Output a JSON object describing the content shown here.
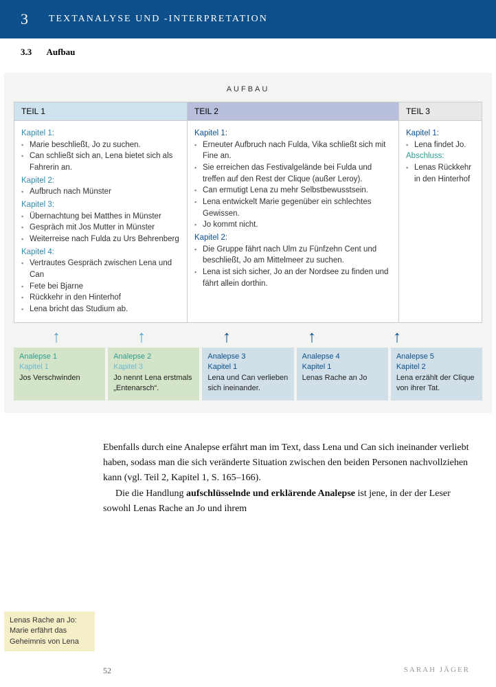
{
  "header": {
    "num": "3",
    "title": "TEXTANALYSE UND -INTERPRETATION"
  },
  "subheader": {
    "num": "3.3",
    "title": "Aufbau"
  },
  "diagram": {
    "title": "AUFBAU",
    "cols": {
      "teil1": "TEIL 1",
      "teil2": "TEIL 2",
      "teil3": "TEIL 3"
    },
    "teil1": {
      "k1": "Kapitel 1:",
      "k1_items": [
        "Marie beschließt, Jo zu suchen.",
        "Can schließt sich an, Lena bietet sich als Fahrerin an."
      ],
      "k2": "Kapitel 2:",
      "k2_items": [
        "Aufbruch nach Münster"
      ],
      "k3": "Kapitel 3:",
      "k3_items": [
        "Übernachtung bei Matthes in Münster",
        "Gespräch mit Jos Mutter in Münster",
        "Weiterreise nach Fulda zu Urs Behrenberg"
      ],
      "k4": "Kapitel 4:",
      "k4_items": [
        "Vertrautes Gespräch zwischen Lena und Can",
        "Fete bei Bjarne",
        "Rückkehr in den Hinterhof",
        "Lena bricht das Studium ab."
      ]
    },
    "teil2": {
      "k1": "Kapitel 1:",
      "k1_items": [
        "Erneuter Aufbruch nach Fulda, Vika schließt sich mit Fine an.",
        "Sie erreichen das Festivalgelände bei Fulda und treffen auf den Rest der Clique (außer Leroy).",
        "Can ermutigt Lena zu mehr Selbst­bewusstsein.",
        "Lena entwickelt Marie gegenüber ein schlechtes Gewissen.",
        "Jo kommt nicht."
      ],
      "k2": "Kapitel 2:",
      "k2_items": [
        "Die Gruppe fährt nach Ulm zu Fünfzehn Cent und beschließt, Jo am Mittelmeer zu suchen.",
        "Lena ist sich sicher, Jo an der Nordsee zu finden und fährt allein dorthin."
      ]
    },
    "teil3": {
      "k1": "Kapitel 1:",
      "k1_items": [
        "Lena findet Jo."
      ],
      "ab": "Abschluss:",
      "ab_items": [
        "Lenas Rückkehr in den Hinterhof"
      ]
    },
    "analepsen": [
      {
        "title": "Analepse 1",
        "kap": "Kapitel 1",
        "text": "Jos Verschwinden",
        "cls": "green",
        "arrow": "light"
      },
      {
        "title": "Analepse 2",
        "kap": "Kapitel 3",
        "text": "Jo nennt Lena erstmals „Entenarsch“.",
        "cls": "green",
        "arrow": "light"
      },
      {
        "title": "Analepse 3",
        "kap": "Kapitel 1",
        "text": "Lena und Can ver­lieben sich ineinander.",
        "cls": "blue",
        "arrow": "dark"
      },
      {
        "title": "Analepse 4",
        "kap": "Kapitel 1",
        "text": "Lenas Rache an Jo",
        "cls": "blue",
        "arrow": "dark"
      },
      {
        "title": "Analepse 5",
        "kap": "Kapitel 2",
        "text": "Lena erzählt der Clique von ihrer Tat.",
        "cls": "blue",
        "arrow": "dark"
      }
    ]
  },
  "margin_note": "Lenas Rache an Jo: Marie erfährt das Geheimnis von Lena",
  "body": {
    "p1": "Ebenfalls durch eine Analepse erfährt man im Text, dass Lena und Can sich ineinander verliebt haben, sodass man die sich ver­änderte Situation zwischen den beiden Personen nachvollziehen kann (vgl. Teil 2, Kapitel 1, S. 165–166).",
    "p2a": "Die die Handlung ",
    "p2b": "aufschlüsselnde und erklärende Analepse",
    "p2c": " ist jene, in der der Leser sowohl Lenas Rache an Jo und ihrem"
  },
  "footer": {
    "page": "52",
    "author": "SARAH JÄGER"
  }
}
